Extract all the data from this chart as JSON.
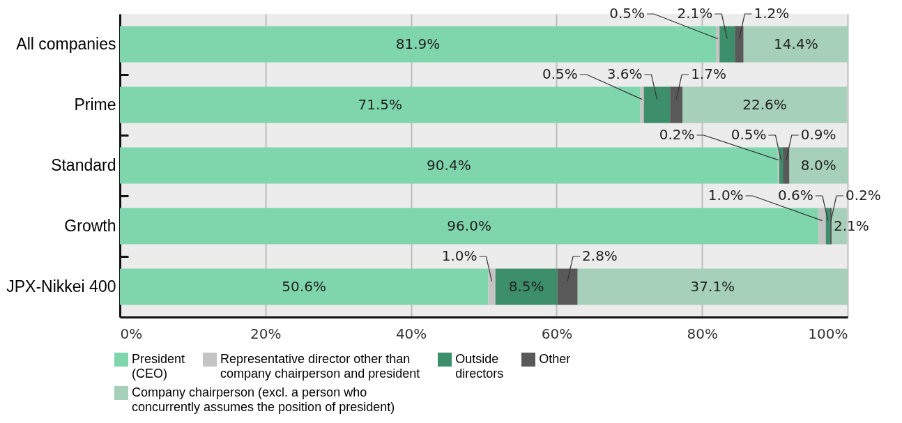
{
  "chart_data": {
    "type": "bar",
    "orientation": "horizontal",
    "stacked": true,
    "categories": [
      "All companies",
      "Prime",
      "Standard",
      "Growth",
      "JPX-Nikkei 400"
    ],
    "series": [
      {
        "name": "President (CEO)",
        "color": "#7fd6ad",
        "values": [
          81.9,
          71.5,
          90.4,
          96.0,
          50.6
        ],
        "value_labels": [
          "81.9%",
          "71.5%",
          "90.4%",
          "96.0%",
          "50.6%"
        ]
      },
      {
        "name": "Representative director other than company chairperson and president",
        "color": "#c4c4c4",
        "values": [
          0.5,
          0.5,
          0.2,
          1.0,
          1.0
        ],
        "value_labels": [
          "0.5%",
          "0.5%",
          "0.2%",
          "1.0%",
          "1.0%"
        ]
      },
      {
        "name": "Outside directors",
        "color": "#3d8f6b",
        "values": [
          2.1,
          3.6,
          0.5,
          0.6,
          8.5
        ],
        "value_labels": [
          "2.1%",
          "3.6%",
          "0.5%",
          "0.6%",
          "8.5%"
        ]
      },
      {
        "name": "Other",
        "color": "#595959",
        "values": [
          1.2,
          1.7,
          0.9,
          0.2,
          2.8
        ],
        "value_labels": [
          "1.2%",
          "1.7%",
          "0.9%",
          "0.2%",
          "2.8%"
        ]
      },
      {
        "name": "Company chairperson (excl. a person who concurrently assumes the position of president)",
        "color": "#a6d0b9",
        "values": [
          14.4,
          22.6,
          8.0,
          2.1,
          37.1
        ],
        "value_labels": [
          "14.4%",
          "22.6%",
          "8.0%",
          "2.1%",
          "37.1%"
        ]
      }
    ],
    "xlim": [
      0,
      100
    ],
    "xticks": [
      {
        "value": 0,
        "label": "0%"
      },
      {
        "value": 20,
        "label": "20%"
      },
      {
        "value": 40,
        "label": "40%"
      },
      {
        "value": 60,
        "label": "60%"
      },
      {
        "value": 80,
        "label": "80%"
      },
      {
        "value": 100,
        "label": "100%"
      }
    ],
    "grid": "x",
    "legend": "bottom"
  }
}
